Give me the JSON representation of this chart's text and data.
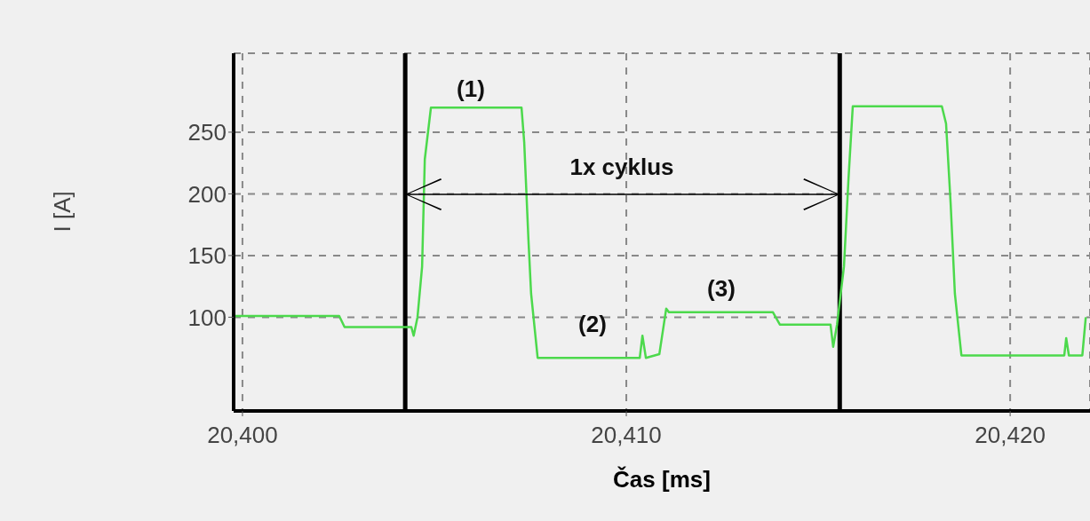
{
  "chart_data": {
    "type": "line",
    "xlabel": "Čas [ms]",
    "ylabel": "I [A]",
    "xlim": [
      20399.77,
      20422.08
    ],
    "ylim": [
      24,
      314
    ],
    "xticks": [
      {
        "value": 20400,
        "label": "20,400"
      },
      {
        "value": 20410,
        "label": "20,410"
      },
      {
        "value": 20420,
        "label": "20,420"
      }
    ],
    "yticks": [
      100,
      150,
      200,
      250
    ],
    "grid": true,
    "legend": false,
    "marker": "none",
    "line_style": "solid",
    "series": [
      {
        "color": "#4cd94c",
        "x": [
          20399.77,
          20402.52,
          20402.66,
          20404.4,
          20404.46,
          20404.56,
          20404.68,
          20404.75,
          20404.91,
          20407.27,
          20407.34,
          20407.45,
          20407.52,
          20407.69,
          20410.35,
          20410.42,
          20410.51,
          20410.86,
          20411.04,
          20411.11,
          20413.82,
          20414,
          20415.32,
          20415.39,
          20415.49,
          20415.67,
          20415.79,
          20415.9,
          20418.22,
          20418.33,
          20418.45,
          20418.56,
          20418.73,
          20421.41,
          20421.46,
          20421.53,
          20421.88,
          20421.97
        ],
        "values": [
          101,
          101,
          92,
          92,
          85,
          100,
          141,
          228,
          270,
          270,
          242,
          163,
          119,
          67,
          67,
          85,
          67,
          70,
          107,
          104,
          104,
          94,
          94,
          76,
          94,
          141,
          213,
          271,
          271,
          257,
          192,
          119,
          69,
          69,
          83,
          69,
          69,
          100
        ]
      }
    ],
    "ref_lines": [
      {
        "axis": "x",
        "value": 20404.24,
        "color": "#000000"
      },
      {
        "axis": "x",
        "value": 20415.56,
        "color": "#000000"
      }
    ],
    "annotations": [
      "(1)",
      "(2)",
      "(3)",
      "1x cyklus"
    ]
  }
}
